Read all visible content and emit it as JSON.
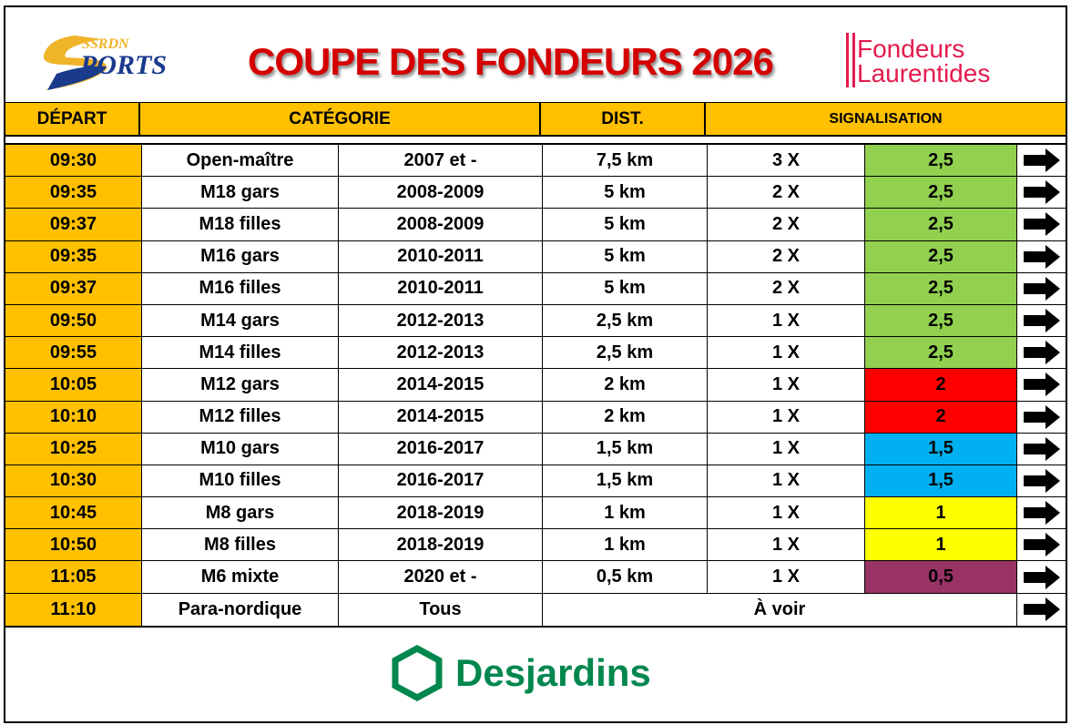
{
  "header": {
    "logo_left": "SSRDN SPORTS",
    "title": "COUPE DES FONDEURS 2026",
    "logo_right": "Fondeurs Laurentides"
  },
  "columns": {
    "depart": "DÉPART",
    "categorie": "CATÉGORIE",
    "dist": "DIST.",
    "signalisation": "SIGNALISATION"
  },
  "colors": {
    "header": "#FFC000",
    "green": "#92D050",
    "red": "#FF0000",
    "blue": "#00B0F0",
    "yellow": "#FFFF00",
    "purple": "#993366"
  },
  "rows": [
    {
      "time": "09:30",
      "category": "Open-maître",
      "years": "2007 et -",
      "distance": "7,5 km",
      "laps": "3 X",
      "sign": "2,5",
      "color": "#92D050"
    },
    {
      "time": "09:35",
      "category": "M18 gars",
      "years": "2008-2009",
      "distance": "5 km",
      "laps": "2 X",
      "sign": "2,5",
      "color": "#92D050"
    },
    {
      "time": "09:37",
      "category": "M18 filles",
      "years": "2008-2009",
      "distance": "5 km",
      "laps": "2 X",
      "sign": "2,5",
      "color": "#92D050"
    },
    {
      "time": "09:35",
      "category": "M16 gars",
      "years": "2010-2011",
      "distance": "5 km",
      "laps": "2 X",
      "sign": "2,5",
      "color": "#92D050"
    },
    {
      "time": "09:37",
      "category": "M16 filles",
      "years": "2010-2011",
      "distance": "5 km",
      "laps": "2 X",
      "sign": "2,5",
      "color": "#92D050"
    },
    {
      "time": "09:50",
      "category": "M14 gars",
      "years": "2012-2013",
      "distance": "2,5 km",
      "laps": "1 X",
      "sign": "2,5",
      "color": "#92D050"
    },
    {
      "time": "09:55",
      "category": "M14 filles",
      "years": "2012-2013",
      "distance": "2,5 km",
      "laps": "1 X",
      "sign": "2,5",
      "color": "#92D050"
    },
    {
      "time": "10:05",
      "category": "M12 gars",
      "years": "2014-2015",
      "distance": "2 km",
      "laps": "1 X",
      "sign": "2",
      "color": "#FF0000"
    },
    {
      "time": "10:10",
      "category": "M12 filles",
      "years": "2014-2015",
      "distance": "2 km",
      "laps": "1 X",
      "sign": "2",
      "color": "#FF0000"
    },
    {
      "time": "10:25",
      "category": "M10 gars",
      "years": "2016-2017",
      "distance": "1,5 km",
      "laps": "1 X",
      "sign": "1,5",
      "color": "#00B0F0"
    },
    {
      "time": "10:30",
      "category": "M10 filles",
      "years": "2016-2017",
      "distance": "1,5 km",
      "laps": "1 X",
      "sign": "1,5",
      "color": "#00B0F0"
    },
    {
      "time": "10:45",
      "category": "M8 gars",
      "years": "2018-2019",
      "distance": "1 km",
      "laps": "1 X",
      "sign": "1",
      "color": "#FFFF00"
    },
    {
      "time": "10:50",
      "category": "M8 filles",
      "years": "2018-2019",
      "distance": "1 km",
      "laps": "1 X",
      "sign": "1",
      "color": "#FFFF00"
    },
    {
      "time": "11:05",
      "category": "M6 mixte",
      "years": "2020 et -",
      "distance": "0,5 km",
      "laps": "1 X",
      "sign": "0,5",
      "color": "#993366"
    }
  ],
  "last_row": {
    "time": "11:10",
    "category": "Para-nordique",
    "years": "Tous",
    "note": "À voir"
  },
  "footer": {
    "sponsor": "Desjardins"
  }
}
